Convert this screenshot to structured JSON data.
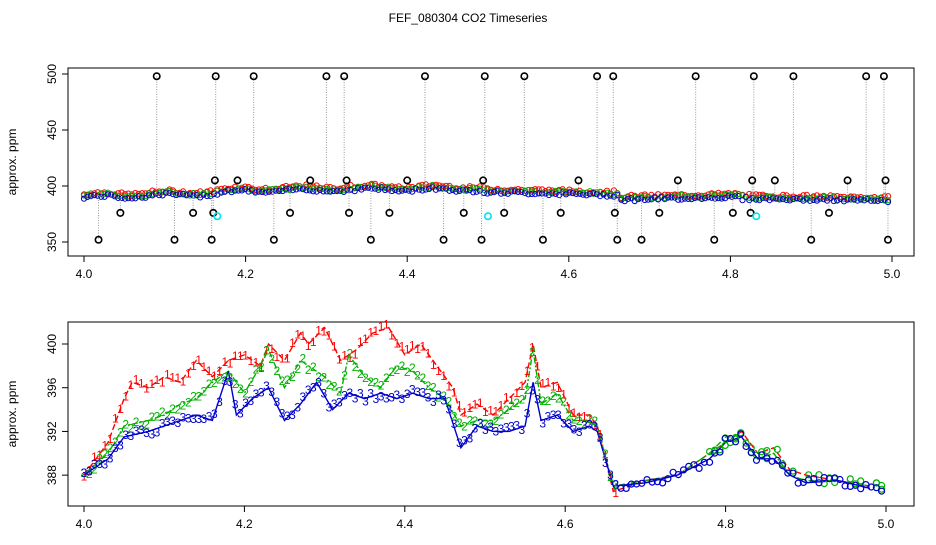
{
  "title": "FEF_080304  CO2 Timeseries",
  "colors": {
    "series1": "#ff0000",
    "series2": "#00b000",
    "series3": "#0000cc",
    "outlier": "#000000",
    "flag": "#00e5ee",
    "gap_line": "#999999",
    "frame": "#000000"
  },
  "chart_data": [
    {
      "type": "scatter",
      "title": "",
      "xlabel": "",
      "ylabel": "approx. ppm",
      "xlim": [
        4.0,
        5.0
      ],
      "ylim": [
        350,
        500
      ],
      "xticks": [
        "4.0",
        "4.2",
        "4.4",
        "4.6",
        "4.8",
        "5.0"
      ],
      "yticks": [
        "350",
        "400",
        "450",
        "500"
      ],
      "outliers": [
        {
          "x": 4.018,
          "y": 352
        },
        {
          "x": 4.045,
          "y": 376
        },
        {
          "x": 4.09,
          "y": 498
        },
        {
          "x": 4.112,
          "y": 352
        },
        {
          "x": 4.135,
          "y": 376
        },
        {
          "x": 4.158,
          "y": 352
        },
        {
          "x": 4.16,
          "y": 376
        },
        {
          "x": 4.162,
          "y": 405
        },
        {
          "x": 4.163,
          "y": 498
        },
        {
          "x": 4.19,
          "y": 405
        },
        {
          "x": 4.21,
          "y": 498
        },
        {
          "x": 4.235,
          "y": 352
        },
        {
          "x": 4.255,
          "y": 376
        },
        {
          "x": 4.28,
          "y": 405
        },
        {
          "x": 4.3,
          "y": 498
        },
        {
          "x": 4.322,
          "y": 498
        },
        {
          "x": 4.325,
          "y": 405
        },
        {
          "x": 4.328,
          "y": 376
        },
        {
          "x": 4.355,
          "y": 352
        },
        {
          "x": 4.378,
          "y": 376
        },
        {
          "x": 4.4,
          "y": 405
        },
        {
          "x": 4.422,
          "y": 498
        },
        {
          "x": 4.445,
          "y": 352
        },
        {
          "x": 4.47,
          "y": 376
        },
        {
          "x": 4.492,
          "y": 352
        },
        {
          "x": 4.494,
          "y": 405
        },
        {
          "x": 4.496,
          "y": 498
        },
        {
          "x": 4.52,
          "y": 376
        },
        {
          "x": 4.545,
          "y": 498
        },
        {
          "x": 4.568,
          "y": 352
        },
        {
          "x": 4.59,
          "y": 376
        },
        {
          "x": 4.612,
          "y": 405
        },
        {
          "x": 4.635,
          "y": 498
        },
        {
          "x": 4.655,
          "y": 498
        },
        {
          "x": 4.657,
          "y": 376
        },
        {
          "x": 4.66,
          "y": 352
        },
        {
          "x": 4.69,
          "y": 352
        },
        {
          "x": 4.712,
          "y": 376
        },
        {
          "x": 4.735,
          "y": 405
        },
        {
          "x": 4.757,
          "y": 498
        },
        {
          "x": 4.78,
          "y": 352
        },
        {
          "x": 4.803,
          "y": 376
        },
        {
          "x": 4.825,
          "y": 376
        },
        {
          "x": 4.827,
          "y": 405
        },
        {
          "x": 4.829,
          "y": 498
        },
        {
          "x": 4.855,
          "y": 405
        },
        {
          "x": 4.878,
          "y": 498
        },
        {
          "x": 4.9,
          "y": 352
        },
        {
          "x": 4.922,
          "y": 376
        },
        {
          "x": 4.945,
          "y": 405
        },
        {
          "x": 4.968,
          "y": 498
        },
        {
          "x": 4.99,
          "y": 498
        },
        {
          "x": 4.992,
          "y": 405
        },
        {
          "x": 4.995,
          "y": 352
        }
      ],
      "flagged": [
        {
          "x": 4.165,
          "y": 373
        },
        {
          "x": 4.5,
          "y": 373
        },
        {
          "x": 4.832,
          "y": 373
        }
      ]
    },
    {
      "type": "line",
      "title": "",
      "xlabel": "",
      "ylabel": "approx. ppm",
      "xlim": [
        4.0,
        5.0
      ],
      "ylim": [
        386,
        402
      ],
      "xticks": [
        "4.0",
        "4.2",
        "4.4",
        "4.6",
        "4.8",
        "5.0"
      ],
      "yticks": [
        "388",
        "392",
        "396",
        "400"
      ],
      "point_labels": [
        "1",
        "2",
        "3"
      ],
      "series": [
        {
          "name": "1",
          "points": [
            [
              4.0,
              388.0
            ],
            [
              4.03,
              391.0
            ],
            [
              4.05,
              395.0
            ],
            [
              4.06,
              396.5
            ],
            [
              4.08,
              396.0
            ],
            [
              4.1,
              397.0
            ],
            [
              4.12,
              396.5
            ],
            [
              4.14,
              398.5
            ],
            [
              4.16,
              397.0
            ],
            [
              4.18,
              398.5
            ],
            [
              4.2,
              399.0
            ],
            [
              4.22,
              398.0
            ],
            [
              4.23,
              400.0
            ],
            [
              4.25,
              398.5
            ],
            [
              4.27,
              401.0
            ],
            [
              4.28,
              400.0
            ],
            [
              4.3,
              401.5
            ],
            [
              4.32,
              398.5
            ],
            [
              4.34,
              399.5
            ],
            [
              4.36,
              401.0
            ],
            [
              4.38,
              401.5
            ],
            [
              4.4,
              399.0
            ],
            [
              4.42,
              400.0
            ],
            [
              4.44,
              398.0
            ],
            [
              4.46,
              396.0
            ],
            [
              4.47,
              393.5
            ],
            [
              4.49,
              394.5
            ],
            [
              4.51,
              393.5
            ],
            [
              4.53,
              395.0
            ],
            [
              4.55,
              396.5
            ],
            [
              4.56,
              400.0
            ],
            [
              4.57,
              396.0
            ],
            [
              4.59,
              396.5
            ],
            [
              4.61,
              393.5
            ],
            [
              4.63,
              393.5
            ],
            [
              4.64,
              392.5
            ],
            [
              4.66,
              386.5
            ],
            [
              4.7,
              387.5
            ],
            [
              4.74,
              388.0
            ],
            [
              4.78,
              390.0
            ],
            [
              4.8,
              391.0
            ],
            [
              4.82,
              392.0
            ],
            [
              4.84,
              390.0
            ],
            [
              4.86,
              390.5
            ],
            [
              4.88,
              388.5
            ],
            [
              4.9,
              388.0
            ],
            [
              4.94,
              387.5
            ],
            [
              4.98,
              387.0
            ]
          ]
        },
        {
          "name": "2",
          "points": [
            [
              4.0,
              388.0
            ],
            [
              4.03,
              390.0
            ],
            [
              4.05,
              392.5
            ],
            [
              4.08,
              393.0
            ],
            [
              4.1,
              393.5
            ],
            [
              4.12,
              394.5
            ],
            [
              4.14,
              395.0
            ],
            [
              4.16,
              396.5
            ],
            [
              4.18,
              397.5
            ],
            [
              4.2,
              395.5
            ],
            [
              4.22,
              398.0
            ],
            [
              4.23,
              399.5
            ],
            [
              4.25,
              396.0
            ],
            [
              4.27,
              398.5
            ],
            [
              4.28,
              398.0
            ],
            [
              4.3,
              397.0
            ],
            [
              4.32,
              395.5
            ],
            [
              4.33,
              399.0
            ],
            [
              4.35,
              397.0
            ],
            [
              4.37,
              396.0
            ],
            [
              4.39,
              398.0
            ],
            [
              4.41,
              397.5
            ],
            [
              4.43,
              396.0
            ],
            [
              4.45,
              395.0
            ],
            [
              4.47,
              392.5
            ],
            [
              4.49,
              393.0
            ],
            [
              4.51,
              393.0
            ],
            [
              4.53,
              394.0
            ],
            [
              4.55,
              395.0
            ],
            [
              4.56,
              399.5
            ],
            [
              4.57,
              394.5
            ],
            [
              4.59,
              395.5
            ],
            [
              4.61,
              393.0
            ],
            [
              4.63,
              393.0
            ],
            [
              4.64,
              392.5
            ],
            [
              4.66,
              387.0
            ],
            [
              4.7,
              387.5
            ],
            [
              4.74,
              388.0
            ],
            [
              4.78,
              390.0
            ],
            [
              4.8,
              391.5
            ],
            [
              4.82,
              391.5
            ],
            [
              4.84,
              389.5
            ],
            [
              4.86,
              390.0
            ],
            [
              4.88,
              388.0
            ],
            [
              4.9,
              387.5
            ],
            [
              4.94,
              387.5
            ],
            [
              4.98,
              387.0
            ]
          ]
        },
        {
          "name": "3",
          "points": [
            [
              4.0,
              388.0
            ],
            [
              4.03,
              389.5
            ],
            [
              4.05,
              391.5
            ],
            [
              4.08,
              392.0
            ],
            [
              4.1,
              392.5
            ],
            [
              4.12,
              393.0
            ],
            [
              4.14,
              393.5
            ],
            [
              4.16,
              393.0
            ],
            [
              4.18,
              397.5
            ],
            [
              4.19,
              393.5
            ],
            [
              4.21,
              395.0
            ],
            [
              4.23,
              396.0
            ],
            [
              4.25,
              393.0
            ],
            [
              4.27,
              394.5
            ],
            [
              4.29,
              396.5
            ],
            [
              4.31,
              394.0
            ],
            [
              4.33,
              395.5
            ],
            [
              4.35,
              395.0
            ],
            [
              4.37,
              395.5
            ],
            [
              4.39,
              395.0
            ],
            [
              4.41,
              395.5
            ],
            [
              4.43,
              395.0
            ],
            [
              4.45,
              395.0
            ],
            [
              4.47,
              390.5
            ],
            [
              4.49,
              392.5
            ],
            [
              4.51,
              392.0
            ],
            [
              4.53,
              392.0
            ],
            [
              4.55,
              392.5
            ],
            [
              4.56,
              396.5
            ],
            [
              4.57,
              393.0
            ],
            [
              4.59,
              393.5
            ],
            [
              4.61,
              392.0
            ],
            [
              4.63,
              392.5
            ],
            [
              4.64,
              392.0
            ],
            [
              4.66,
              387.0
            ],
            [
              4.7,
              387.3
            ],
            [
              4.74,
              388.0
            ],
            [
              4.78,
              389.5
            ],
            [
              4.8,
              391.0
            ],
            [
              4.82,
              391.5
            ],
            [
              4.84,
              389.5
            ],
            [
              4.86,
              389.5
            ],
            [
              4.88,
              388.0
            ],
            [
              4.9,
              387.3
            ],
            [
              4.94,
              387.5
            ],
            [
              4.98,
              386.8
            ]
          ]
        }
      ]
    }
  ]
}
